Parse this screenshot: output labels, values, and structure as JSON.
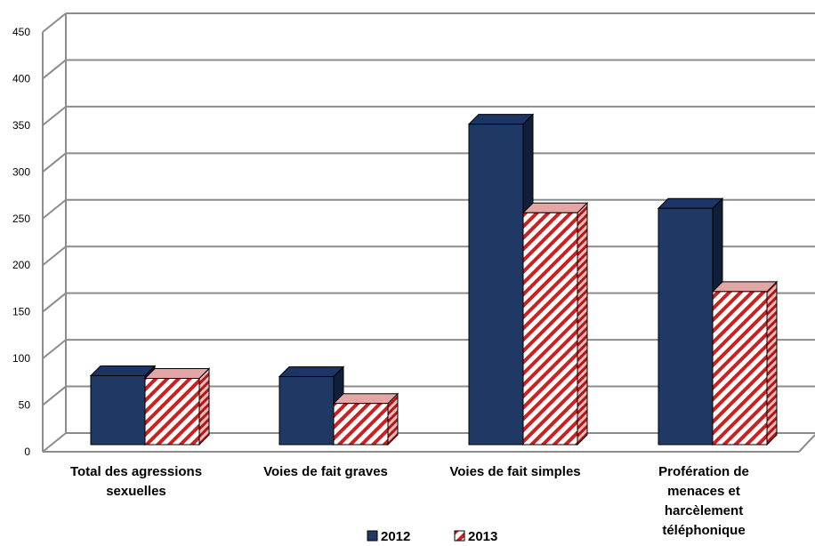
{
  "chart_data": {
    "type": "bar",
    "title": "",
    "xlabel": "",
    "ylabel": "",
    "categories": [
      "Total des agressions sexuelles",
      "Voies de fait graves",
      "Voies de fait simples",
      "Profération de menaces et harcèlement téléphonique"
    ],
    "category_lines": [
      [
        "Total des agressions",
        "sexuelles"
      ],
      [
        "Voies de fait graves"
      ],
      [
        "Voies de fait simples"
      ],
      [
        "Profération de",
        "menaces et",
        "harcèlement",
        "téléphonique"
      ]
    ],
    "series": [
      {
        "name": "2012",
        "values": [
          77,
          76,
          358,
          264
        ]
      },
      {
        "name": "2013",
        "values": [
          74,
          46,
          259,
          171
        ]
      }
    ],
    "ylim": [
      0,
      450
    ],
    "yticks": [
      0,
      50,
      100,
      150,
      200,
      250,
      300,
      350,
      400,
      450
    ],
    "grid": true,
    "legend_position": "bottom",
    "colors": {
      "series_2012": "#1f3864",
      "series_2012_dark": "#0f1f3a",
      "series_2013_stripe": "#cc1f1f",
      "series_2013_bg": "#ffffff",
      "grid": "#8c8c8c"
    }
  }
}
